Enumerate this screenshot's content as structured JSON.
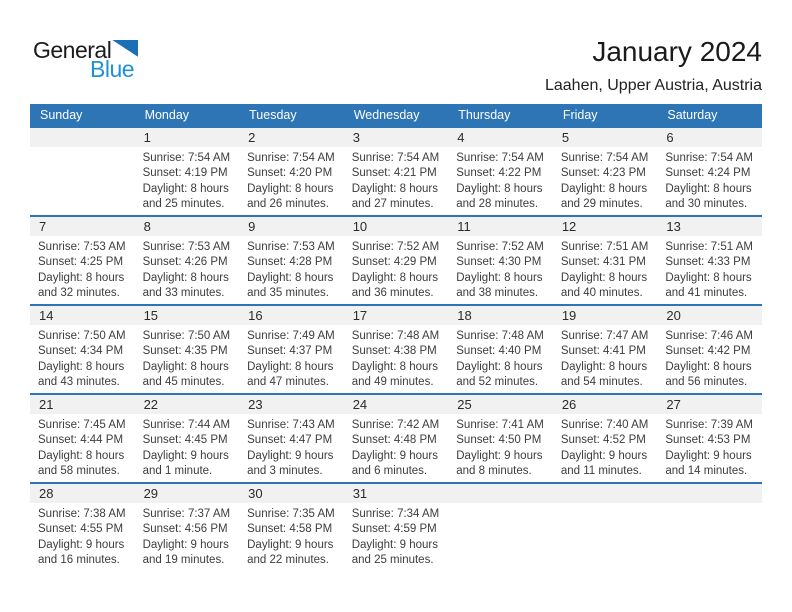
{
  "logo": {
    "general": "General",
    "blue": "Blue"
  },
  "title": "January 2024",
  "subtitle": "Laahen, Upper Austria, Austria",
  "colors": {
    "header_bg": "#2E75B6",
    "week_separator": "#2E75B6",
    "day_band_bg": "#F1F1F1",
    "logo_text_blue": "#2191D6",
    "logo_triangle_blue": "#1B6FB5",
    "body_text": "#3D3D3D"
  },
  "weekdays": [
    "Sunday",
    "Monday",
    "Tuesday",
    "Wednesday",
    "Thursday",
    "Friday",
    "Saturday"
  ],
  "weeks": [
    [
      {
        "day": "",
        "sunrise": "",
        "sunset": "",
        "daylight1": "",
        "daylight2": ""
      },
      {
        "day": "1",
        "sunrise": "Sunrise: 7:54 AM",
        "sunset": "Sunset: 4:19 PM",
        "daylight1": "Daylight: 8 hours",
        "daylight2": "and 25 minutes."
      },
      {
        "day": "2",
        "sunrise": "Sunrise: 7:54 AM",
        "sunset": "Sunset: 4:20 PM",
        "daylight1": "Daylight: 8 hours",
        "daylight2": "and 26 minutes."
      },
      {
        "day": "3",
        "sunrise": "Sunrise: 7:54 AM",
        "sunset": "Sunset: 4:21 PM",
        "daylight1": "Daylight: 8 hours",
        "daylight2": "and 27 minutes."
      },
      {
        "day": "4",
        "sunrise": "Sunrise: 7:54 AM",
        "sunset": "Sunset: 4:22 PM",
        "daylight1": "Daylight: 8 hours",
        "daylight2": "and 28 minutes."
      },
      {
        "day": "5",
        "sunrise": "Sunrise: 7:54 AM",
        "sunset": "Sunset: 4:23 PM",
        "daylight1": "Daylight: 8 hours",
        "daylight2": "and 29 minutes."
      },
      {
        "day": "6",
        "sunrise": "Sunrise: 7:54 AM",
        "sunset": "Sunset: 4:24 PM",
        "daylight1": "Daylight: 8 hours",
        "daylight2": "and 30 minutes."
      }
    ],
    [
      {
        "day": "7",
        "sunrise": "Sunrise: 7:53 AM",
        "sunset": "Sunset: 4:25 PM",
        "daylight1": "Daylight: 8 hours",
        "daylight2": "and 32 minutes."
      },
      {
        "day": "8",
        "sunrise": "Sunrise: 7:53 AM",
        "sunset": "Sunset: 4:26 PM",
        "daylight1": "Daylight: 8 hours",
        "daylight2": "and 33 minutes."
      },
      {
        "day": "9",
        "sunrise": "Sunrise: 7:53 AM",
        "sunset": "Sunset: 4:28 PM",
        "daylight1": "Daylight: 8 hours",
        "daylight2": "and 35 minutes."
      },
      {
        "day": "10",
        "sunrise": "Sunrise: 7:52 AM",
        "sunset": "Sunset: 4:29 PM",
        "daylight1": "Daylight: 8 hours",
        "daylight2": "and 36 minutes."
      },
      {
        "day": "11",
        "sunrise": "Sunrise: 7:52 AM",
        "sunset": "Sunset: 4:30 PM",
        "daylight1": "Daylight: 8 hours",
        "daylight2": "and 38 minutes."
      },
      {
        "day": "12",
        "sunrise": "Sunrise: 7:51 AM",
        "sunset": "Sunset: 4:31 PM",
        "daylight1": "Daylight: 8 hours",
        "daylight2": "and 40 minutes."
      },
      {
        "day": "13",
        "sunrise": "Sunrise: 7:51 AM",
        "sunset": "Sunset: 4:33 PM",
        "daylight1": "Daylight: 8 hours",
        "daylight2": "and 41 minutes."
      }
    ],
    [
      {
        "day": "14",
        "sunrise": "Sunrise: 7:50 AM",
        "sunset": "Sunset: 4:34 PM",
        "daylight1": "Daylight: 8 hours",
        "daylight2": "and 43 minutes."
      },
      {
        "day": "15",
        "sunrise": "Sunrise: 7:50 AM",
        "sunset": "Sunset: 4:35 PM",
        "daylight1": "Daylight: 8 hours",
        "daylight2": "and 45 minutes."
      },
      {
        "day": "16",
        "sunrise": "Sunrise: 7:49 AM",
        "sunset": "Sunset: 4:37 PM",
        "daylight1": "Daylight: 8 hours",
        "daylight2": "and 47 minutes."
      },
      {
        "day": "17",
        "sunrise": "Sunrise: 7:48 AM",
        "sunset": "Sunset: 4:38 PM",
        "daylight1": "Daylight: 8 hours",
        "daylight2": "and 49 minutes."
      },
      {
        "day": "18",
        "sunrise": "Sunrise: 7:48 AM",
        "sunset": "Sunset: 4:40 PM",
        "daylight1": "Daylight: 8 hours",
        "daylight2": "and 52 minutes."
      },
      {
        "day": "19",
        "sunrise": "Sunrise: 7:47 AM",
        "sunset": "Sunset: 4:41 PM",
        "daylight1": "Daylight: 8 hours",
        "daylight2": "and 54 minutes."
      },
      {
        "day": "20",
        "sunrise": "Sunrise: 7:46 AM",
        "sunset": "Sunset: 4:42 PM",
        "daylight1": "Daylight: 8 hours",
        "daylight2": "and 56 minutes."
      }
    ],
    [
      {
        "day": "21",
        "sunrise": "Sunrise: 7:45 AM",
        "sunset": "Sunset: 4:44 PM",
        "daylight1": "Daylight: 8 hours",
        "daylight2": "and 58 minutes."
      },
      {
        "day": "22",
        "sunrise": "Sunrise: 7:44 AM",
        "sunset": "Sunset: 4:45 PM",
        "daylight1": "Daylight: 9 hours",
        "daylight2": "and 1 minute."
      },
      {
        "day": "23",
        "sunrise": "Sunrise: 7:43 AM",
        "sunset": "Sunset: 4:47 PM",
        "daylight1": "Daylight: 9 hours",
        "daylight2": "and 3 minutes."
      },
      {
        "day": "24",
        "sunrise": "Sunrise: 7:42 AM",
        "sunset": "Sunset: 4:48 PM",
        "daylight1": "Daylight: 9 hours",
        "daylight2": "and 6 minutes."
      },
      {
        "day": "25",
        "sunrise": "Sunrise: 7:41 AM",
        "sunset": "Sunset: 4:50 PM",
        "daylight1": "Daylight: 9 hours",
        "daylight2": "and 8 minutes."
      },
      {
        "day": "26",
        "sunrise": "Sunrise: 7:40 AM",
        "sunset": "Sunset: 4:52 PM",
        "daylight1": "Daylight: 9 hours",
        "daylight2": "and 11 minutes."
      },
      {
        "day": "27",
        "sunrise": "Sunrise: 7:39 AM",
        "sunset": "Sunset: 4:53 PM",
        "daylight1": "Daylight: 9 hours",
        "daylight2": "and 14 minutes."
      }
    ],
    [
      {
        "day": "28",
        "sunrise": "Sunrise: 7:38 AM",
        "sunset": "Sunset: 4:55 PM",
        "daylight1": "Daylight: 9 hours",
        "daylight2": "and 16 minutes."
      },
      {
        "day": "29",
        "sunrise": "Sunrise: 7:37 AM",
        "sunset": "Sunset: 4:56 PM",
        "daylight1": "Daylight: 9 hours",
        "daylight2": "and 19 minutes."
      },
      {
        "day": "30",
        "sunrise": "Sunrise: 7:35 AM",
        "sunset": "Sunset: 4:58 PM",
        "daylight1": "Daylight: 9 hours",
        "daylight2": "and 22 minutes."
      },
      {
        "day": "31",
        "sunrise": "Sunrise: 7:34 AM",
        "sunset": "Sunset: 4:59 PM",
        "daylight1": "Daylight: 9 hours",
        "daylight2": "and 25 minutes."
      },
      {
        "day": "",
        "sunrise": "",
        "sunset": "",
        "daylight1": "",
        "daylight2": ""
      },
      {
        "day": "",
        "sunrise": "",
        "sunset": "",
        "daylight1": "",
        "daylight2": ""
      },
      {
        "day": "",
        "sunrise": "",
        "sunset": "",
        "daylight1": "",
        "daylight2": ""
      }
    ]
  ]
}
